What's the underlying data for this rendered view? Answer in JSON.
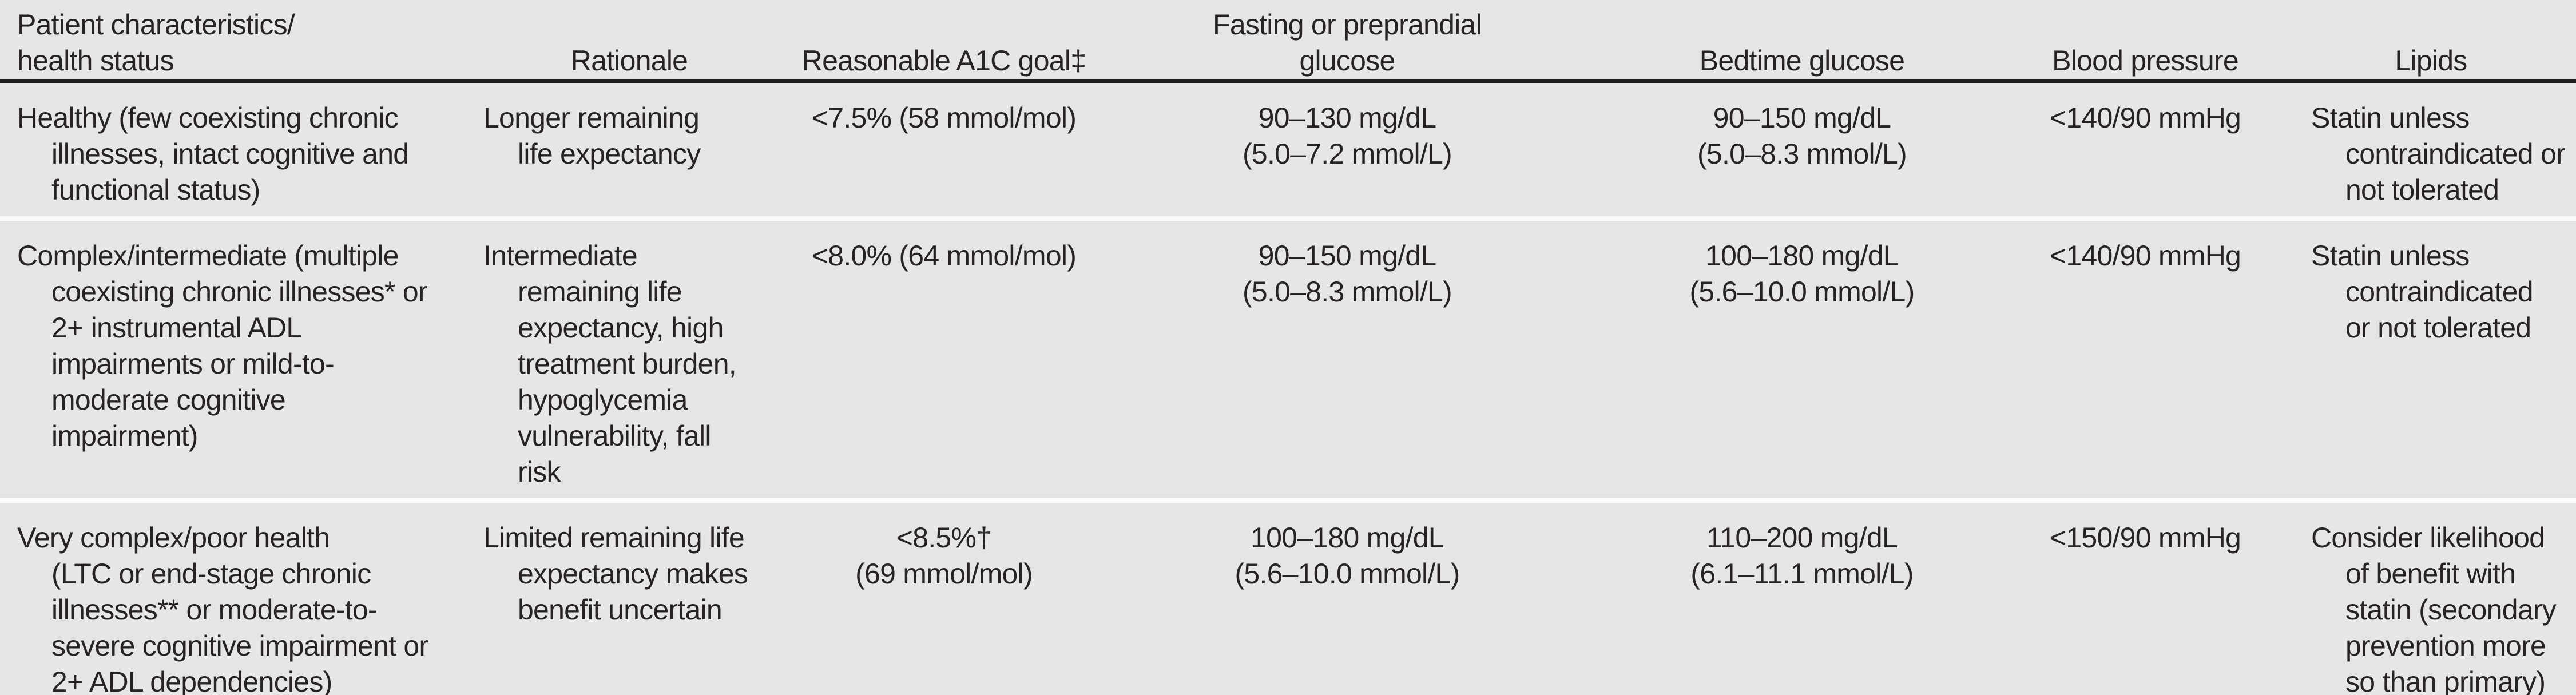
{
  "colors": {
    "bg": "#e7e6e6",
    "ink": "#272324",
    "rule": "#1d1b1c",
    "divider": "#fcfcfc"
  },
  "table": {
    "header": [
      "Patient characteristics/\nhealth status",
      "Rationale",
      "Reasonable A1C goal‡",
      "Fasting or preprandial\nglucose",
      "Bedtime glucose",
      "Blood pressure",
      "Lipids"
    ],
    "rows": [
      {
        "cells": [
          "Healthy (few coexisting chronic\nillnesses, intact cognitive and\nfunctional status)",
          "Longer remaining\nlife expectancy",
          "<7.5% (58 mmol/mol)",
          "90–130 mg/dL\n(5.0–7.2 mmol/L)",
          "90–150 mg/dL\n(5.0–8.3 mmol/L)",
          "<140/90 mmHg",
          "Statin unless\ncontraindicated or\nnot tolerated"
        ]
      },
      {
        "cells": [
          "Complex/intermediate (multiple\ncoexisting chronic illnesses* or\n2+ instrumental ADL\nimpairments or mild-to-\nmoderate cognitive\nimpairment)",
          "Intermediate\nremaining life\nexpectancy, high\ntreatment burden,\nhypoglycemia\nvulnerability, fall\nrisk",
          "<8.0% (64 mmol/mol)",
          "90–150 mg/dL\n(5.0–8.3 mmol/L)",
          "100–180 mg/dL\n(5.6–10.0 mmol/L)",
          "<140/90 mmHg",
          "Statin unless\ncontraindicated\nor not tolerated"
        ]
      },
      {
        "cells": [
          "Very complex/poor health\n(LTC or end-stage chronic\nillnesses** or moderate-to-\nsevere cognitive impairment or\n2+ ADL dependencies)",
          "Limited remaining life\nexpectancy makes\nbenefit uncertain",
          "<8.5%†\n(69 mmol/mol)",
          "100–180 mg/dL\n(5.6–10.0 mmol/L)",
          "110–200 mg/dL\n(6.1–11.1 mmol/L)",
          "<150/90 mmHg",
          "Consider likelihood\nof benefit with\nstatin (secondary\nprevention more\nso than primary)"
        ]
      }
    ]
  }
}
